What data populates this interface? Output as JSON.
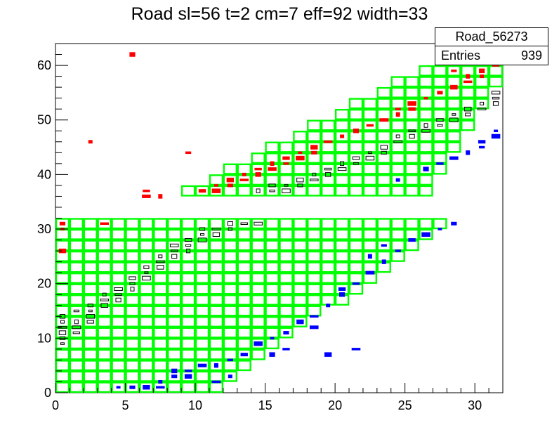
{
  "chart_data": {
    "type": "heatmap",
    "title": "Road sl=56 t=2 cm=7 eff=92 width=33",
    "xlabel": "",
    "ylabel": "",
    "xlim": [
      0,
      32
    ],
    "ylim": [
      0,
      64
    ],
    "x_ticks": [
      0,
      5,
      10,
      15,
      20,
      25,
      30
    ],
    "y_ticks": [
      0,
      10,
      20,
      30,
      40,
      50,
      60
    ],
    "grid": false,
    "colors": {
      "road": "#00ff00",
      "hit_primary": "#000000",
      "hit_positive": "#ff0000",
      "hit_negative": "#0000ff"
    },
    "stats": {
      "name": "Road_56273",
      "entries_label": "Entries",
      "entries_value": "939"
    },
    "road_lower": {
      "y_min": 0,
      "y_max": 32,
      "x_min": 0,
      "x_at_ymin": 12,
      "x_at_ymax": 29
    },
    "road_upper": {
      "y_min": 36,
      "y_max": 60,
      "x_at_ymin_left": 9,
      "x_at_ymax_left": 27,
      "x_at_ymin_right": 26,
      "x_max": 32
    },
    "hits_primary": [
      [
        0.5,
        9
      ],
      [
        0.5,
        10
      ],
      [
        0.5,
        11
      ],
      [
        0.5,
        12
      ],
      [
        0.5,
        13
      ],
      [
        0.5,
        14
      ],
      [
        1.5,
        11
      ],
      [
        1.5,
        12
      ],
      [
        1.5,
        13
      ],
      [
        1.5,
        15
      ],
      [
        2.5,
        13
      ],
      [
        2.5,
        14
      ],
      [
        2.5,
        15
      ],
      [
        2.5,
        16
      ],
      [
        3.5,
        16
      ],
      [
        3.5,
        17
      ],
      [
        3.5,
        18
      ],
      [
        4.5,
        17
      ],
      [
        4.5,
        18
      ],
      [
        4.5,
        19
      ],
      [
        5.5,
        19
      ],
      [
        5.5,
        20
      ],
      [
        5.5,
        21
      ],
      [
        6.5,
        21
      ],
      [
        6.5,
        22
      ],
      [
        6.5,
        23
      ],
      [
        7.5,
        23
      ],
      [
        7.5,
        24
      ],
      [
        7.5,
        25
      ],
      [
        8.5,
        25
      ],
      [
        8.5,
        26
      ],
      [
        8.5,
        27
      ],
      [
        9.5,
        26
      ],
      [
        9.5,
        27
      ],
      [
        9.5,
        28
      ],
      [
        10.5,
        28
      ],
      [
        10.5,
        29
      ],
      [
        10.5,
        30
      ],
      [
        11.5,
        29
      ],
      [
        11.5,
        30
      ],
      [
        12.5,
        30
      ],
      [
        12.5,
        31
      ],
      [
        13.5,
        31
      ],
      [
        14.5,
        31
      ],
      [
        14.5,
        37
      ],
      [
        15.5,
        37
      ],
      [
        15.5,
        38
      ],
      [
        16.5,
        37
      ],
      [
        16.5,
        38
      ],
      [
        17.5,
        38
      ],
      [
        17.5,
        39
      ],
      [
        18.5,
        39
      ],
      [
        18.5,
        40
      ],
      [
        19.5,
        40
      ],
      [
        19.5,
        41
      ],
      [
        20.5,
        41
      ],
      [
        20.5,
        42
      ],
      [
        21.5,
        42
      ],
      [
        21.5,
        43
      ],
      [
        22.5,
        43
      ],
      [
        22.5,
        44
      ],
      [
        23.5,
        44
      ],
      [
        23.5,
        45
      ],
      [
        24.5,
        46
      ],
      [
        24.5,
        47
      ],
      [
        25.5,
        47
      ],
      [
        25.5,
        48
      ],
      [
        26.5,
        48
      ],
      [
        26.5,
        49
      ],
      [
        27.5,
        49
      ],
      [
        27.5,
        50
      ],
      [
        28.5,
        50
      ],
      [
        28.5,
        51
      ],
      [
        29.5,
        51
      ],
      [
        29.5,
        52
      ],
      [
        30.5,
        52
      ],
      [
        30.5,
        53
      ],
      [
        31.5,
        53
      ],
      [
        31.5,
        54
      ],
      [
        31.5,
        55
      ]
    ],
    "hits_positive": [
      [
        0.5,
        30
      ],
      [
        0.5,
        31
      ],
      [
        0.5,
        26
      ],
      [
        3.5,
        31
      ],
      [
        2.5,
        46
      ],
      [
        5.5,
        62
      ],
      [
        6.5,
        37
      ],
      [
        6.5,
        36
      ],
      [
        7.5,
        36
      ],
      [
        9.5,
        44
      ],
      [
        10.5,
        37
      ],
      [
        11.5,
        37
      ],
      [
        11.5,
        38
      ],
      [
        12.5,
        38
      ],
      [
        12.5,
        39
      ],
      [
        13.5,
        39
      ],
      [
        13.5,
        40
      ],
      [
        14.5,
        40
      ],
      [
        14.5,
        41
      ],
      [
        15.5,
        41
      ],
      [
        15.5,
        42
      ],
      [
        16.5,
        42
      ],
      [
        16.5,
        43
      ],
      [
        17.5,
        43
      ],
      [
        17.5,
        44
      ],
      [
        18.5,
        44
      ],
      [
        18.5,
        45
      ],
      [
        19.5,
        46
      ],
      [
        20.5,
        47
      ],
      [
        21.5,
        48
      ],
      [
        22.5,
        49
      ],
      [
        23.5,
        50
      ],
      [
        24.5,
        51
      ],
      [
        24.5,
        52
      ],
      [
        25.5,
        52
      ],
      [
        25.5,
        53
      ],
      [
        26.5,
        54
      ],
      [
        27.5,
        55
      ],
      [
        28.5,
        56
      ],
      [
        29.5,
        57
      ],
      [
        30.5,
        58
      ],
      [
        30.5,
        59
      ],
      [
        31.5,
        60
      ],
      [
        31.5,
        61
      ],
      [
        29.5,
        58
      ],
      [
        28.5,
        59
      ]
    ],
    "hits_negative": [
      [
        4.5,
        1
      ],
      [
        5.5,
        1
      ],
      [
        6.5,
        1
      ],
      [
        7.5,
        1
      ],
      [
        7.5,
        2
      ],
      [
        8.5,
        4
      ],
      [
        9.5,
        4
      ],
      [
        10.5,
        5
      ],
      [
        11.5,
        5
      ],
      [
        12.5,
        6
      ],
      [
        13.5,
        7
      ],
      [
        14.5,
        9
      ],
      [
        15.5,
        10
      ],
      [
        16.5,
        11
      ],
      [
        17.5,
        13
      ],
      [
        18.5,
        14
      ],
      [
        19.5,
        16
      ],
      [
        20.5,
        18
      ],
      [
        21.5,
        20
      ],
      [
        22.5,
        22
      ],
      [
        23.5,
        24
      ],
      [
        24.5,
        26
      ],
      [
        25.5,
        28
      ],
      [
        26.5,
        29
      ],
      [
        27.5,
        30
      ],
      [
        28.5,
        31
      ],
      [
        19.5,
        7
      ],
      [
        21.5,
        8
      ],
      [
        24.5,
        39
      ],
      [
        26.5,
        41
      ],
      [
        27.5,
        42
      ],
      [
        28.5,
        43
      ],
      [
        29.5,
        44
      ],
      [
        30.5,
        45
      ],
      [
        30.5,
        46
      ],
      [
        31.5,
        47
      ],
      [
        31.5,
        48
      ],
      [
        8.5,
        3
      ],
      [
        9.5,
        3
      ],
      [
        11.5,
        2
      ],
      [
        12.5,
        3
      ],
      [
        15.5,
        7
      ],
      [
        16.5,
        8
      ],
      [
        18.5,
        12
      ],
      [
        22.5,
        25
      ],
      [
        23.5,
        27
      ],
      [
        20.5,
        19
      ]
    ]
  }
}
